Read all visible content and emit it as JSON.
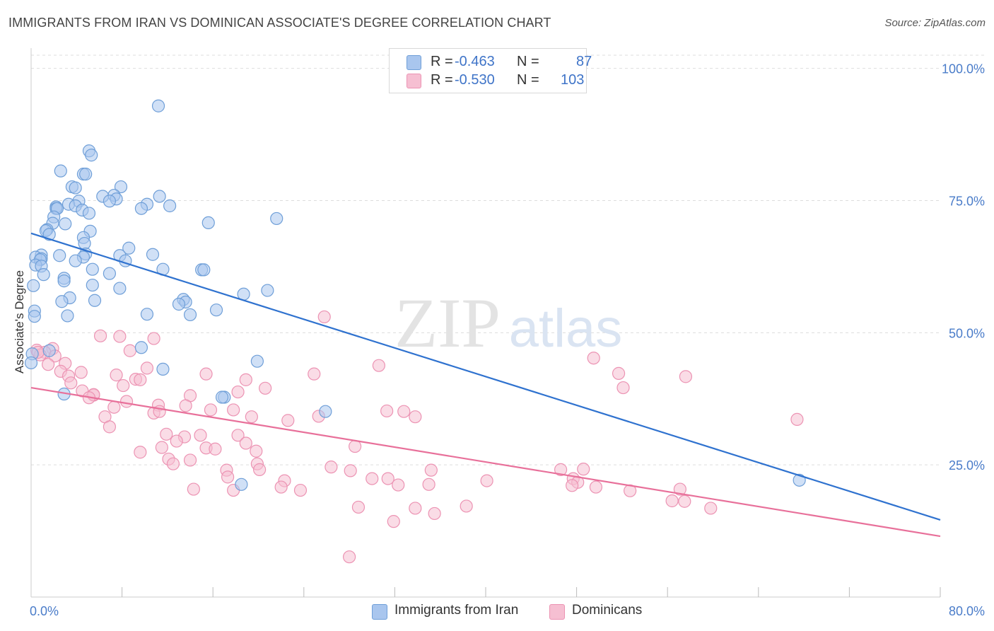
{
  "title": "IMMIGRANTS FROM IRAN VS DOMINICAN ASSOCIATE'S DEGREE CORRELATION CHART",
  "source": "Source: ZipAtlas.com",
  "watermark": {
    "zip": "ZIP",
    "atlas": "atlas"
  },
  "legend": {
    "rows": [
      {
        "r_label": "R =",
        "r_value": "-0.463",
        "n_label": "N =",
        "n_value": "87"
      },
      {
        "r_label": "R =",
        "r_value": "-0.530",
        "n_label": "N =",
        "n_value": "103"
      }
    ]
  },
  "bottom_legend": [
    "Immigrants from Iran",
    "Dominicans"
  ],
  "colors": {
    "iran_fill": "#a9c6ee",
    "iran_stroke": "#6f9fd8",
    "iran_line": "#2f72cf",
    "dom_fill": "#f6bfd2",
    "dom_stroke": "#ec93b3",
    "dom_line": "#e8709a",
    "tick_text": "#4a7cc9",
    "grid": "#dddddd"
  },
  "chart_data": {
    "type": "scatter",
    "title": "IMMIGRANTS FROM IRAN VS DOMINICAN ASSOCIATE'S DEGREE CORRELATION CHART",
    "xlabel": "",
    "ylabel": "Associate's Degree",
    "xlim": [
      0,
      80
    ],
    "ylim": [
      0,
      102.5
    ],
    "x_tick_labels": [
      "0.0%",
      "80.0%"
    ],
    "y_tick_values": [
      25,
      50,
      75,
      100
    ],
    "y_tick_labels": [
      "25.0%",
      "50.0%",
      "75.0%",
      "100.0%"
    ],
    "grid": "horizontal dashed",
    "legend_position": "top-center",
    "series": [
      {
        "name": "Immigrants from Iran",
        "r": -0.463,
        "n": 87,
        "trend": {
          "x": [
            0,
            80
          ],
          "y": [
            68.8,
            14.6
          ]
        },
        "points": [
          [
            11.2,
            92.9
          ],
          [
            5.1,
            84.4
          ],
          [
            5.3,
            83.6
          ],
          [
            2.6,
            80.6
          ],
          [
            4.6,
            80.0
          ],
          [
            4.8,
            80.0
          ],
          [
            3.6,
            77.6
          ],
          [
            3.9,
            77.4
          ],
          [
            7.9,
            77.6
          ],
          [
            6.3,
            75.8
          ],
          [
            7.3,
            76.0
          ],
          [
            11.3,
            75.8
          ],
          [
            7.5,
            75.3
          ],
          [
            6.9,
            74.9
          ],
          [
            4.2,
            74.9
          ],
          [
            3.3,
            74.3
          ],
          [
            3.9,
            74.0
          ],
          [
            10.2,
            74.3
          ],
          [
            12.2,
            74.0
          ],
          [
            2.2,
            73.8
          ],
          [
            2.2,
            73.5
          ],
          [
            2.3,
            73.5
          ],
          [
            4.5,
            73.2
          ],
          [
            9.7,
            73.5
          ],
          [
            5.1,
            72.6
          ],
          [
            2.0,
            71.9
          ],
          [
            21.6,
            71.6
          ],
          [
            1.9,
            70.7
          ],
          [
            3.0,
            70.6
          ],
          [
            15.6,
            70.8
          ],
          [
            1.4,
            69.5
          ],
          [
            1.3,
            69.3
          ],
          [
            5.2,
            69.2
          ],
          [
            1.6,
            68.6
          ],
          [
            4.6,
            68.0
          ],
          [
            4.7,
            66.9
          ],
          [
            8.6,
            66.0
          ],
          [
            0.9,
            64.7
          ],
          [
            2.5,
            64.6
          ],
          [
            4.8,
            64.9
          ],
          [
            10.7,
            64.8
          ],
          [
            7.8,
            64.6
          ],
          [
            0.4,
            64.3
          ],
          [
            0.9,
            64.0
          ],
          [
            4.6,
            64.3
          ],
          [
            0.8,
            63.8
          ],
          [
            8.3,
            63.6
          ],
          [
            3.9,
            63.6
          ],
          [
            0.4,
            62.8
          ],
          [
            0.9,
            62.6
          ],
          [
            5.4,
            62.0
          ],
          [
            11.6,
            62.0
          ],
          [
            15.0,
            61.9
          ],
          [
            15.2,
            61.9
          ],
          [
            6.9,
            61.2
          ],
          [
            1.1,
            61.0
          ],
          [
            2.9,
            60.3
          ],
          [
            0.2,
            58.9
          ],
          [
            2.9,
            59.8
          ],
          [
            5.4,
            59.0
          ],
          [
            7.8,
            58.4
          ],
          [
            20.8,
            58.0
          ],
          [
            18.7,
            57.3
          ],
          [
            3.4,
            56.6
          ],
          [
            13.4,
            56.3
          ],
          [
            13.6,
            55.8
          ],
          [
            2.7,
            55.9
          ],
          [
            5.6,
            56.1
          ],
          [
            13.0,
            55.4
          ],
          [
            16.3,
            54.3
          ],
          [
            0.3,
            54.1
          ],
          [
            10.2,
            53.5
          ],
          [
            14.0,
            53.4
          ],
          [
            3.2,
            53.2
          ],
          [
            0.3,
            53.1
          ],
          [
            19.9,
            44.6
          ],
          [
            1.6,
            46.6
          ],
          [
            9.7,
            47.2
          ],
          [
            11.6,
            43.1
          ],
          [
            2.9,
            38.4
          ],
          [
            17.0,
            37.8
          ],
          [
            25.9,
            35.1
          ],
          [
            18.5,
            21.3
          ],
          [
            67.6,
            22.1
          ],
          [
            0.1,
            46.0
          ],
          [
            0.0,
            44.3
          ],
          [
            16.8,
            37.8
          ]
        ]
      },
      {
        "name": "Dominicans",
        "r": -0.53,
        "n": 103,
        "trend": {
          "x": [
            0,
            80
          ],
          "y": [
            39.6,
            11.5
          ]
        },
        "points": [
          [
            25.8,
            53.0
          ],
          [
            6.1,
            49.4
          ],
          [
            7.8,
            49.3
          ],
          [
            10.8,
            48.9
          ],
          [
            1.9,
            47.0
          ],
          [
            0.5,
            46.7
          ],
          [
            8.7,
            46.6
          ],
          [
            1.2,
            46.3
          ],
          [
            0.8,
            45.8
          ],
          [
            2.1,
            45.6
          ],
          [
            49.5,
            45.2
          ],
          [
            3.0,
            44.2
          ],
          [
            1.5,
            44.0
          ],
          [
            30.6,
            43.8
          ],
          [
            10.2,
            43.3
          ],
          [
            51.7,
            42.3
          ],
          [
            2.6,
            42.7
          ],
          [
            4.4,
            42.5
          ],
          [
            15.4,
            42.2
          ],
          [
            24.9,
            42.2
          ],
          [
            7.5,
            42.0
          ],
          [
            3.3,
            41.8
          ],
          [
            57.6,
            41.7
          ],
          [
            18.9,
            41.1
          ],
          [
            9.2,
            41.2
          ],
          [
            9.6,
            41.1
          ],
          [
            3.5,
            40.5
          ],
          [
            8.1,
            40.0
          ],
          [
            52.1,
            39.6
          ],
          [
            20.6,
            39.5
          ],
          [
            4.5,
            39.0
          ],
          [
            18.2,
            38.8
          ],
          [
            5.5,
            38.2
          ],
          [
            5.5,
            38.3
          ],
          [
            14.0,
            38.1
          ],
          [
            5.1,
            37.7
          ],
          [
            8.4,
            37.0
          ],
          [
            11.2,
            36.3
          ],
          [
            13.6,
            36.2
          ],
          [
            7.3,
            35.9
          ],
          [
            15.8,
            35.4
          ],
          [
            17.8,
            35.4
          ],
          [
            31.3,
            35.2
          ],
          [
            32.8,
            35.1
          ],
          [
            10.8,
            34.8
          ],
          [
            11.3,
            35.1
          ],
          [
            6.5,
            34.1
          ],
          [
            19.4,
            34.1
          ],
          [
            33.8,
            34.1
          ],
          [
            25.3,
            34.2
          ],
          [
            22.6,
            33.4
          ],
          [
            67.4,
            33.6
          ],
          [
            6.9,
            32.2
          ],
          [
            11.9,
            30.8
          ],
          [
            13.5,
            30.3
          ],
          [
            14.9,
            30.6
          ],
          [
            18.2,
            30.6
          ],
          [
            12.8,
            29.5
          ],
          [
            18.9,
            29.1
          ],
          [
            28.5,
            28.5
          ],
          [
            11.5,
            28.3
          ],
          [
            15.4,
            28.2
          ],
          [
            16.2,
            28.0
          ],
          [
            19.8,
            27.6
          ],
          [
            9.6,
            27.4
          ],
          [
            12.1,
            26.1
          ],
          [
            14.0,
            25.9
          ],
          [
            12.5,
            25.2
          ],
          [
            19.9,
            25.2
          ],
          [
            26.4,
            24.6
          ],
          [
            46.6,
            24.1
          ],
          [
            17.2,
            24.0
          ],
          [
            28.1,
            23.9
          ],
          [
            20.1,
            24.1
          ],
          [
            35.2,
            24.0
          ],
          [
            48.6,
            24.2
          ],
          [
            17.3,
            22.7
          ],
          [
            30.0,
            22.4
          ],
          [
            47.7,
            22.4
          ],
          [
            31.4,
            22.4
          ],
          [
            22.3,
            22.0
          ],
          [
            48.1,
            21.7
          ],
          [
            40.1,
            22.0
          ],
          [
            35.0,
            21.3
          ],
          [
            32.3,
            21.2
          ],
          [
            47.6,
            21.1
          ],
          [
            49.7,
            20.8
          ],
          [
            14.3,
            20.4
          ],
          [
            17.8,
            20.2
          ],
          [
            22.0,
            20.8
          ],
          [
            23.7,
            20.2
          ],
          [
            52.7,
            20.1
          ],
          [
            57.5,
            18.1
          ],
          [
            56.4,
            18.2
          ],
          [
            28.8,
            17.0
          ],
          [
            33.8,
            16.8
          ],
          [
            38.3,
            17.2
          ],
          [
            57.1,
            20.4
          ],
          [
            35.5,
            15.8
          ],
          [
            59.8,
            16.8
          ],
          [
            31.9,
            14.3
          ],
          [
            28.0,
            7.6
          ],
          [
            0.6,
            46.3
          ]
        ]
      }
    ]
  }
}
